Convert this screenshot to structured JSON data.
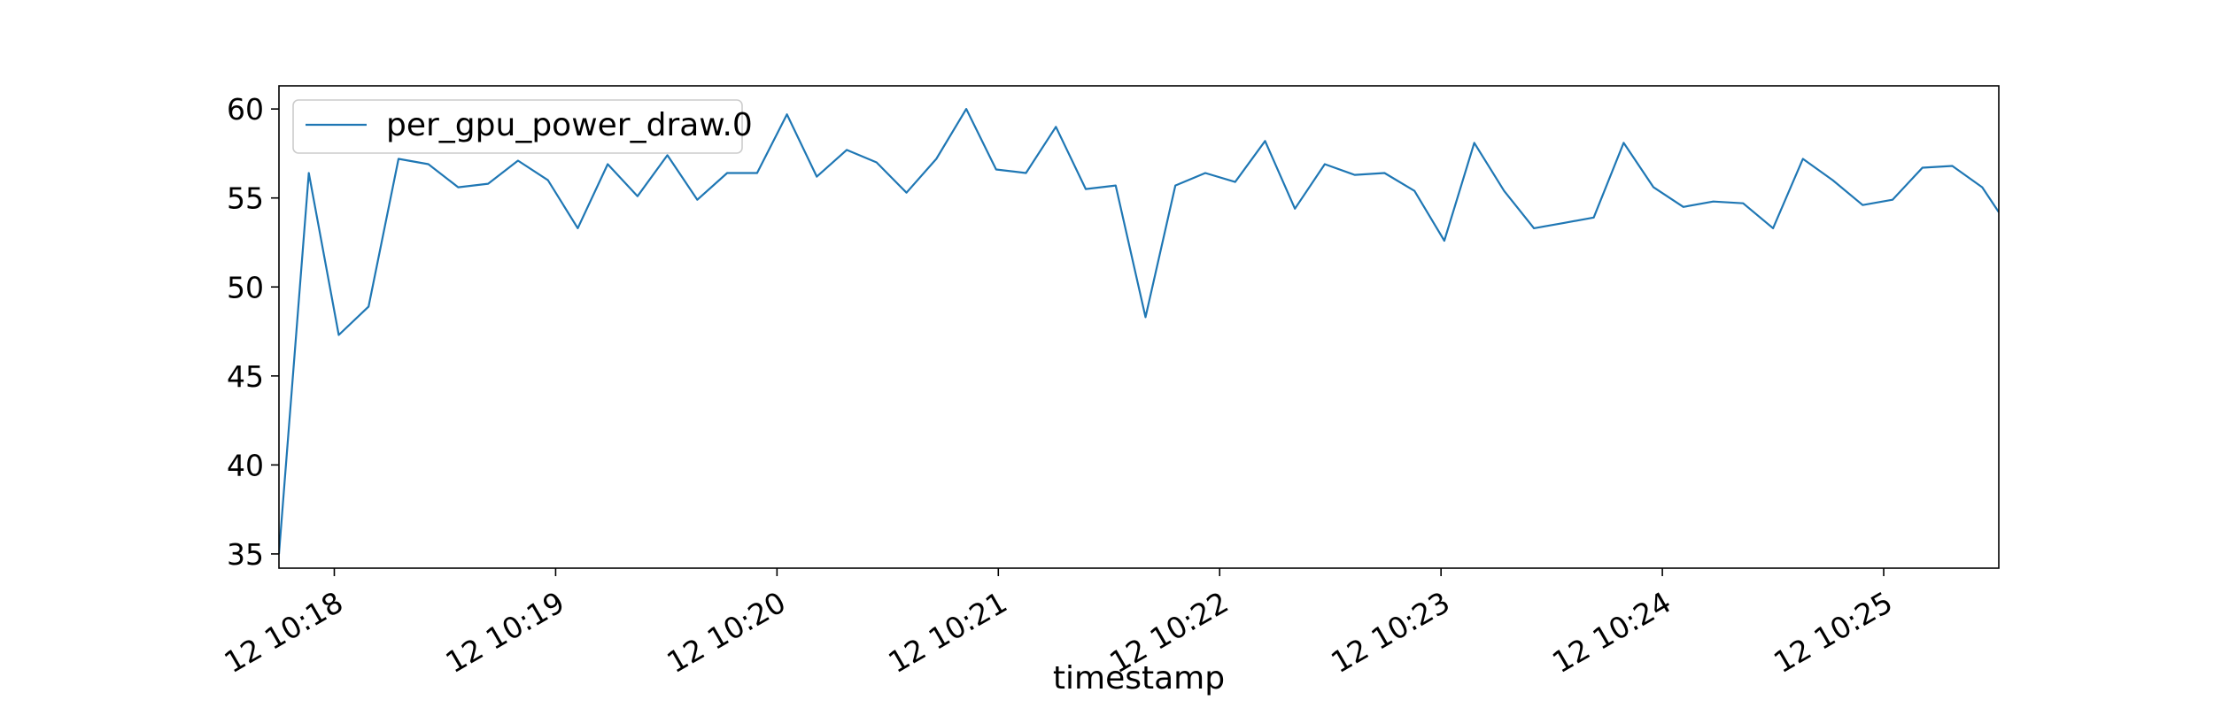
{
  "chart_data": {
    "type": "line",
    "title": "",
    "xlabel": "timestamp",
    "ylabel": "",
    "x_range_minutes": [
      17.75,
      25.52
    ],
    "ylim": [
      34.2,
      61.3
    ],
    "grid": false,
    "legend_position": "top-left",
    "x_ticks": [
      {
        "label": "12 10:18",
        "minute": 18
      },
      {
        "label": "12 10:19",
        "minute": 19
      },
      {
        "label": "12 10:20",
        "minute": 20
      },
      {
        "label": "12 10:21",
        "minute": 21
      },
      {
        "label": "12 10:22",
        "minute": 22
      },
      {
        "label": "12 10:23",
        "minute": 23
      },
      {
        "label": "12 10:24",
        "minute": 24
      },
      {
        "label": "12 10:25",
        "minute": 25
      }
    ],
    "y_ticks": [
      35,
      40,
      45,
      50,
      55,
      60
    ],
    "series": [
      {
        "name": "per_gpu_power_draw.0",
        "color": "#1f77b4",
        "points": [
          [
            17.75,
            35.0
          ],
          [
            17.885,
            56.4
          ],
          [
            18.02,
            47.3
          ],
          [
            18.155,
            48.9
          ],
          [
            18.29,
            57.2
          ],
          [
            18.425,
            56.9
          ],
          [
            18.56,
            55.6
          ],
          [
            18.695,
            55.8
          ],
          [
            18.83,
            57.1
          ],
          [
            18.965,
            56.0
          ],
          [
            19.1,
            53.3
          ],
          [
            19.235,
            56.9
          ],
          [
            19.37,
            55.1
          ],
          [
            19.505,
            57.4
          ],
          [
            19.64,
            54.9
          ],
          [
            19.775,
            56.4
          ],
          [
            19.91,
            56.4
          ],
          [
            20.045,
            59.7
          ],
          [
            20.18,
            56.2
          ],
          [
            20.315,
            57.7
          ],
          [
            20.45,
            57.0
          ],
          [
            20.585,
            55.3
          ],
          [
            20.72,
            57.2
          ],
          [
            20.855,
            60.0
          ],
          [
            20.99,
            56.6
          ],
          [
            21.125,
            56.4
          ],
          [
            21.26,
            59.0
          ],
          [
            21.395,
            55.5
          ],
          [
            21.53,
            55.7
          ],
          [
            21.665,
            48.3
          ],
          [
            21.8,
            55.7
          ],
          [
            21.935,
            56.4
          ],
          [
            22.07,
            55.9
          ],
          [
            22.205,
            58.2
          ],
          [
            22.34,
            54.4
          ],
          [
            22.475,
            56.9
          ],
          [
            22.61,
            56.3
          ],
          [
            22.745,
            56.4
          ],
          [
            22.88,
            55.4
          ],
          [
            23.015,
            52.6
          ],
          [
            23.15,
            58.1
          ],
          [
            23.285,
            55.4
          ],
          [
            23.42,
            53.3
          ],
          [
            23.555,
            53.6
          ],
          [
            23.69,
            53.9
          ],
          [
            23.825,
            58.1
          ],
          [
            23.96,
            55.6
          ],
          [
            24.095,
            54.5
          ],
          [
            24.23,
            54.8
          ],
          [
            24.365,
            54.7
          ],
          [
            24.5,
            53.3
          ],
          [
            24.635,
            57.2
          ],
          [
            24.77,
            56.0
          ],
          [
            24.905,
            54.6
          ],
          [
            25.04,
            54.9
          ],
          [
            25.175,
            56.7
          ],
          [
            25.31,
            56.8
          ],
          [
            25.445,
            55.6
          ],
          [
            25.52,
            54.2
          ]
        ]
      }
    ]
  }
}
